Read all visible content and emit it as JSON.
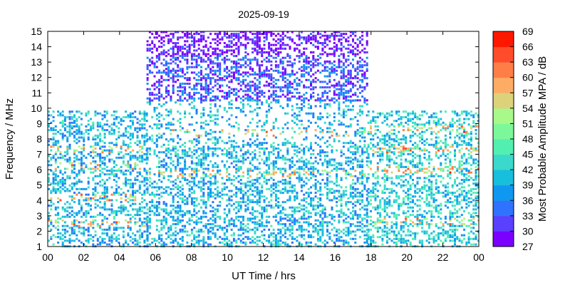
{
  "chart_data": {
    "type": "heatmap",
    "title": "2025-09-19",
    "xlabel": "UT Time / hrs",
    "ylabel": "Frequency / MHz",
    "colorbar_label": "Most Probable Amplitude MPA / dB",
    "xlim": [
      0,
      24
    ],
    "ylim": [
      1,
      15
    ],
    "x_ticks": [
      "00",
      "02",
      "04",
      "06",
      "08",
      "10",
      "12",
      "14",
      "16",
      "18",
      "20",
      "22",
      "00"
    ],
    "y_ticks": [
      "1",
      "2",
      "3",
      "4",
      "5",
      "6",
      "7",
      "8",
      "9",
      "10",
      "11",
      "12",
      "13",
      "14",
      "15"
    ],
    "colorbar_range": [
      27,
      69
    ],
    "colorbar_ticks": [
      "27",
      "30",
      "33",
      "36",
      "39",
      "42",
      "45",
      "48",
      "51",
      "54",
      "57",
      "60",
      "63",
      "66",
      "69"
    ],
    "colormap": [
      "#7a00ff",
      "#5a40ff",
      "#2f72ff",
      "#1098f0",
      "#18bfdc",
      "#3ad9cc",
      "#52f0b0",
      "#7cf89a",
      "#a8f88a",
      "#dcd27c",
      "#fcac64",
      "#ff7e48",
      "#ff4c2a",
      "#ff1800"
    ],
    "regions": [
      {
        "t_start": 0.0,
        "t_end": 5.5,
        "f_min": 1.0,
        "f_max": 9.8,
        "level_db": 40,
        "hot_bands_mhz": [
          2.5,
          4.2,
          6.2,
          7.3
        ]
      },
      {
        "t_start": 5.5,
        "t_end": 17.8,
        "f_min": 1.0,
        "f_max": 10.5,
        "level_db": 40,
        "hot_bands_mhz": [
          5.7,
          8.4
        ]
      },
      {
        "t_start": 5.5,
        "t_end": 17.8,
        "f_min": 10.5,
        "f_max": 15.0,
        "level_db": 33,
        "hot_bands_mhz": []
      },
      {
        "t_start": 17.8,
        "t_end": 24.0,
        "f_min": 1.0,
        "f_max": 9.8,
        "level_db": 42,
        "hot_bands_mhz": [
          2.6,
          6.0,
          7.3,
          8.6
        ]
      }
    ]
  }
}
